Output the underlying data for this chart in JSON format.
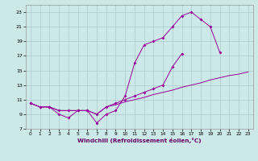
{
  "line1_x": [
    0,
    1,
    2,
    3,
    4,
    5,
    6,
    7,
    8,
    9,
    10,
    11,
    12,
    13,
    14,
    15,
    16,
    17,
    18,
    19,
    20,
    21
  ],
  "line1_y": [
    10.5,
    10.0,
    10.0,
    9.0,
    8.5,
    9.5,
    9.5,
    7.8,
    9.0,
    9.5,
    11.5,
    16.0,
    18.5,
    19.0,
    19.5,
    21.0,
    22.5,
    23.0,
    22.0,
    21.0,
    17.5,
    null
  ],
  "line2_x": [
    0,
    1,
    2,
    3,
    4,
    5,
    6,
    7,
    8,
    9,
    10,
    11,
    12,
    13,
    14,
    15,
    16,
    17,
    20,
    21,
    22,
    23
  ],
  "line2_y": [
    10.5,
    10.0,
    10.0,
    9.5,
    9.5,
    9.5,
    9.5,
    9.0,
    10.0,
    10.5,
    11.0,
    11.5,
    12.0,
    12.5,
    13.0,
    15.5,
    17.3,
    null,
    null,
    null,
    null,
    null
  ],
  "line3_x": [
    0,
    1,
    2,
    3,
    4,
    5,
    6,
    7,
    8,
    9,
    10,
    11,
    12,
    13,
    14,
    15,
    16,
    17,
    18,
    19,
    20,
    21,
    22,
    23
  ],
  "line3_y": [
    10.5,
    10.0,
    10.0,
    9.5,
    9.5,
    9.5,
    9.5,
    9.0,
    10.0,
    10.3,
    10.7,
    11.0,
    11.3,
    11.7,
    12.0,
    12.3,
    12.7,
    13.0,
    13.3,
    13.7,
    14.0,
    14.3,
    14.5,
    14.8
  ],
  "line_color": "#990099",
  "bg_color": "#cce8e8",
  "grid_color": "#aacccc",
  "xlabel": "Windchill (Refroidissement éolien,°C)",
  "xlim": [
    -0.5,
    23.5
  ],
  "ylim": [
    7,
    24
  ],
  "yticks": [
    7,
    9,
    11,
    13,
    15,
    17,
    19,
    21,
    23
  ],
  "xticks": [
    0,
    1,
    2,
    3,
    4,
    5,
    6,
    7,
    8,
    9,
    10,
    11,
    12,
    13,
    14,
    15,
    16,
    17,
    18,
    19,
    20,
    21,
    22,
    23
  ]
}
